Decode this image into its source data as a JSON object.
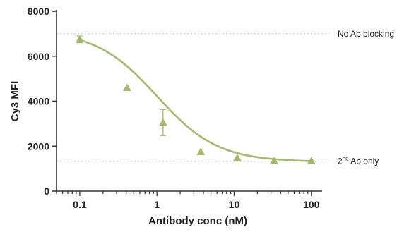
{
  "chart_data": {
    "type": "scatter",
    "title": "",
    "xlabel": "Antibody conc (nM)",
    "ylabel": "Cy3 MFI",
    "x_scale": "log",
    "xlim": [
      0.05,
      150
    ],
    "ylim": [
      0,
      8000
    ],
    "x_ticks": [
      {
        "value": 0.1,
        "label": "0.1"
      },
      {
        "value": 1,
        "label": "1"
      },
      {
        "value": 10,
        "label": "10"
      },
      {
        "value": 100,
        "label": "100"
      }
    ],
    "y_ticks": [
      {
        "value": 0,
        "label": "0"
      },
      {
        "value": 2000,
        "label": "2000"
      },
      {
        "value": 4000,
        "label": "4000"
      },
      {
        "value": 6000,
        "label": "6000"
      },
      {
        "value": 8000,
        "label": "8000"
      }
    ],
    "grid": false,
    "color": "#a4b86f",
    "series": [
      {
        "marker": "triangle",
        "points": [
          {
            "x": 0.1,
            "y": 6750,
            "err": 150
          },
          {
            "x": 0.41,
            "y": 4600,
            "err": 0
          },
          {
            "x": 1.2,
            "y": 3050,
            "err": 580
          },
          {
            "x": 3.7,
            "y": 1750,
            "err": 0
          },
          {
            "x": 11,
            "y": 1480,
            "err": 0
          },
          {
            "x": 33,
            "y": 1350,
            "err": 0
          },
          {
            "x": 100,
            "y": 1350,
            "err": 0
          }
        ],
        "fit": {
          "model": "4PL",
          "top": 7150,
          "bottom": 1300,
          "ec50": 1.0,
          "hill": 1.1
        }
      }
    ],
    "reference_lines": [
      {
        "y": 7000,
        "label": "No Ab blocking"
      },
      {
        "y": 1330,
        "label_base": "2",
        "label_sup": "nd",
        "label_rest": " Ab only"
      }
    ]
  }
}
